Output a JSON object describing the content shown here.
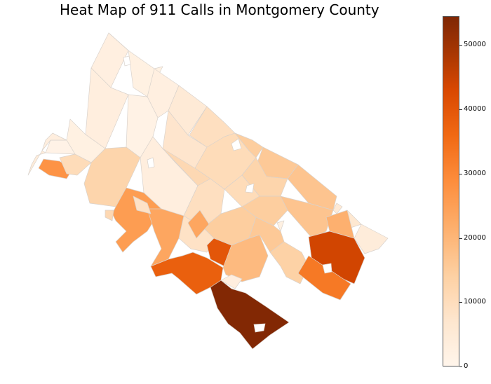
{
  "title": "Heat Map of 911 Calls in Montgomery County",
  "colorbar": {
    "min": 0,
    "max": 54500,
    "ticks": [
      "0",
      "10000",
      "20000",
      "30000",
      "40000",
      "50000"
    ],
    "tick_values": [
      0,
      10000,
      20000,
      30000,
      40000,
      50000
    ],
    "colormap": [
      "#fff5eb",
      "#fee6ce",
      "#fdd0a2",
      "#fdae6b",
      "#fd8d3c",
      "#f16913",
      "#d94801",
      "#a63603",
      "#7f2704"
    ]
  },
  "chart_data": {
    "type": "heatmap",
    "title": "Heat Map of 911 Calls in Montgomery County",
    "value_range": [
      0,
      54500
    ],
    "colorbar_ticks": [
      0,
      10000,
      20000,
      30000,
      40000,
      50000
    ],
    "regions": [
      {
        "id": "r01",
        "value": 2500
      },
      {
        "id": "r02",
        "value": 2000
      },
      {
        "id": "r03",
        "value": 2500
      },
      {
        "id": "r04",
        "value": 1500
      },
      {
        "id": "r05",
        "value": 3000
      },
      {
        "id": "r06",
        "value": 5000
      },
      {
        "id": "r07",
        "value": 9000
      },
      {
        "id": "r08",
        "value": 7000
      },
      {
        "id": "r09",
        "value": 2000
      },
      {
        "id": "r10",
        "value": 1200
      },
      {
        "id": "r11",
        "value": 3000
      },
      {
        "id": "r12",
        "value": 4000
      },
      {
        "id": "r13",
        "value": 26000
      },
      {
        "id": "r14",
        "value": 10000
      },
      {
        "id": "r15",
        "value": 12000
      },
      {
        "id": "r16",
        "value": 3000
      },
      {
        "id": "r17",
        "value": 11000
      },
      {
        "id": "r18",
        "value": 9000
      },
      {
        "id": "r19",
        "value": 10000
      },
      {
        "id": "r20",
        "value": 14000
      },
      {
        "id": "r21",
        "value": 15000
      },
      {
        "id": "r22",
        "value": 16000
      },
      {
        "id": "r23",
        "value": 5000
      },
      {
        "id": "r24",
        "value": 6000
      },
      {
        "id": "r25",
        "value": 4000
      },
      {
        "id": "r26",
        "value": 12000
      },
      {
        "id": "r27",
        "value": 10000
      },
      {
        "id": "r28",
        "value": 14000
      },
      {
        "id": "r29",
        "value": 16000
      },
      {
        "id": "r30",
        "value": 2000
      },
      {
        "id": "r31",
        "value": 20000
      },
      {
        "id": "r32",
        "value": 24000
      },
      {
        "id": "r33",
        "value": 11000
      },
      {
        "id": "r34",
        "value": 8000
      },
      {
        "id": "r35",
        "value": 14000
      },
      {
        "id": "r36",
        "value": 22000
      },
      {
        "id": "r37",
        "value": 38000
      },
      {
        "id": "r38",
        "value": 36000
      },
      {
        "id": "r39",
        "value": 18000
      },
      {
        "id": "r40",
        "value": 15000
      },
      {
        "id": "r41",
        "value": 13000
      },
      {
        "id": "r42",
        "value": 42000
      },
      {
        "id": "r43",
        "value": 31000
      },
      {
        "id": "r44",
        "value": 54000
      },
      {
        "id": "r45",
        "value": 8000
      },
      {
        "id": "r46",
        "value": 22000
      },
      {
        "id": "r47",
        "value": 3000
      }
    ]
  }
}
